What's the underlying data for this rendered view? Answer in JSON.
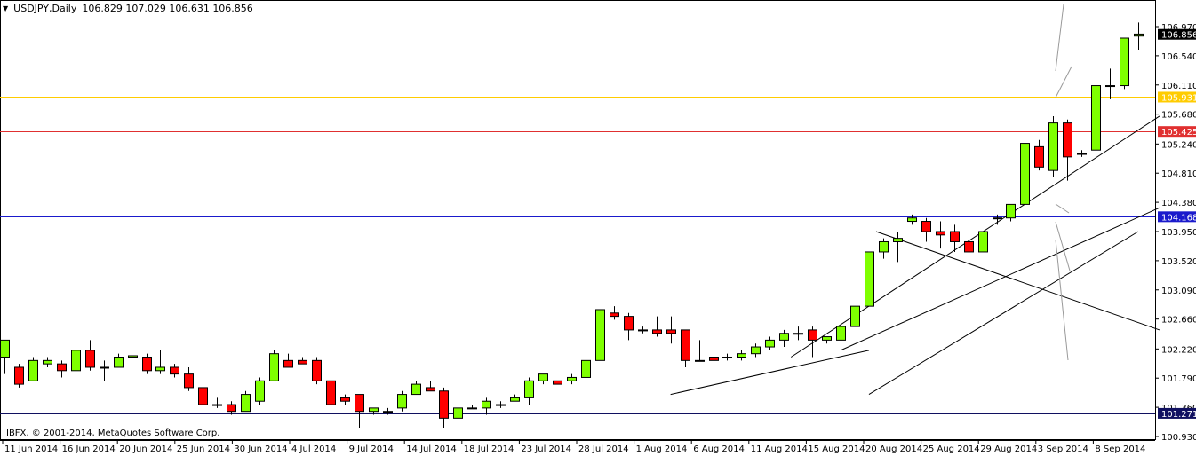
{
  "header": {
    "menu_glyph": "▼",
    "symbol": "USDJPY,Daily",
    "ohlc": "106.829 107.029 106.631 106.856"
  },
  "copyright": "IBFX, © 2001-2014, MetaQuotes Software Corp.",
  "colors": {
    "bull": "#7fff00",
    "bear": "#ff0000",
    "hline_yellow": "#ffcc00",
    "hline_red": "#e03030",
    "hline_blue": "#1a1acc",
    "hline_navy": "#101060"
  },
  "chart_data": {
    "type": "candlestick",
    "symbol": "USDJPY",
    "timeframe": "Daily",
    "ylim": [
      100.93,
      107.2
    ],
    "y_ticks": [
      "106.970",
      "106.540",
      "106.110",
      "105.680",
      "105.240",
      "104.810",
      "104.380",
      "103.950",
      "103.520",
      "103.090",
      "102.660",
      "102.220",
      "101.790",
      "101.360",
      "100.930"
    ],
    "x_ticks": [
      "11 Jun 2014",
      "16 Jun 2014",
      "20 Jun 2014",
      "25 Jun 2014",
      "30 Jun 2014",
      "4 Jul 2014",
      "9 Jul 2014",
      "14 Jul 2014",
      "18 Jul 2014",
      "23 Jul 2014",
      "28 Jul 2014",
      "1 Aug 2014",
      "6 Aug 2014",
      "11 Aug 2014",
      "15 Aug 2014",
      "20 Aug 2014",
      "25 Aug 2014",
      "29 Aug 2014",
      "3 Sep 2014",
      "8 Sep 2014"
    ],
    "price_levels": [
      {
        "label": "106.856",
        "value": 106.856,
        "color": "#000000",
        "line": false
      },
      {
        "label": "105.931",
        "value": 105.931,
        "color": "#ffcc00",
        "line": true
      },
      {
        "label": "105.425",
        "value": 105.425,
        "color": "#e03030",
        "line": true
      },
      {
        "label": "104.168",
        "value": 104.168,
        "color": "#1a1acc",
        "line": true
      },
      {
        "label": "101.271",
        "value": 101.271,
        "color": "#101060",
        "line": true
      }
    ],
    "candles": [
      {
        "o": 102.1,
        "h": 102.35,
        "l": 101.85,
        "c": 102.35
      },
      {
        "o": 101.95,
        "h": 102.0,
        "l": 101.65,
        "c": 101.7
      },
      {
        "o": 101.75,
        "h": 102.1,
        "l": 101.75,
        "c": 102.05
      },
      {
        "o": 102.0,
        "h": 102.1,
        "l": 101.95,
        "c": 102.05
      },
      {
        "o": 102.0,
        "h": 102.05,
        "l": 101.8,
        "c": 101.9
      },
      {
        "o": 101.9,
        "h": 102.25,
        "l": 101.85,
        "c": 102.2
      },
      {
        "o": 102.2,
        "h": 102.35,
        "l": 101.9,
        "c": 101.95
      },
      {
        "o": 101.95,
        "h": 102.05,
        "l": 101.75,
        "c": 101.95
      },
      {
        "o": 101.95,
        "h": 102.15,
        "l": 101.95,
        "c": 102.1
      },
      {
        "o": 102.1,
        "h": 102.12,
        "l": 102.08,
        "c": 102.12
      },
      {
        "o": 102.1,
        "h": 102.15,
        "l": 101.85,
        "c": 101.9
      },
      {
        "o": 101.9,
        "h": 102.2,
        "l": 101.85,
        "c": 101.95
      },
      {
        "o": 101.95,
        "h": 102.0,
        "l": 101.8,
        "c": 101.85
      },
      {
        "o": 101.85,
        "h": 101.95,
        "l": 101.6,
        "c": 101.65
      },
      {
        "o": 101.65,
        "h": 101.7,
        "l": 101.35,
        "c": 101.4
      },
      {
        "o": 101.4,
        "h": 101.5,
        "l": 101.35,
        "c": 101.4
      },
      {
        "o": 101.4,
        "h": 101.45,
        "l": 101.25,
        "c": 101.3
      },
      {
        "o": 101.3,
        "h": 101.6,
        "l": 101.3,
        "c": 101.55
      },
      {
        "o": 101.45,
        "h": 101.8,
        "l": 101.4,
        "c": 101.75
      },
      {
        "o": 101.75,
        "h": 102.2,
        "l": 101.75,
        "c": 102.15
      },
      {
        "o": 102.05,
        "h": 102.15,
        "l": 101.95,
        "c": 101.95
      },
      {
        "o": 102.05,
        "h": 102.1,
        "l": 102.0,
        "c": 102.0
      },
      {
        "o": 102.05,
        "h": 102.1,
        "l": 101.7,
        "c": 101.75
      },
      {
        "o": 101.75,
        "h": 101.8,
        "l": 101.35,
        "c": 101.4
      },
      {
        "o": 101.5,
        "h": 101.55,
        "l": 101.4,
        "c": 101.45
      },
      {
        "o": 101.55,
        "h": 101.55,
        "l": 101.05,
        "c": 101.3
      },
      {
        "o": 101.3,
        "h": 101.35,
        "l": 101.25,
        "c": 101.35
      },
      {
        "o": 101.3,
        "h": 101.35,
        "l": 101.25,
        "c": 101.3
      },
      {
        "o": 101.35,
        "h": 101.6,
        "l": 101.3,
        "c": 101.55
      },
      {
        "o": 101.55,
        "h": 101.75,
        "l": 101.55,
        "c": 101.7
      },
      {
        "o": 101.65,
        "h": 101.75,
        "l": 101.6,
        "c": 101.6
      },
      {
        "o": 101.6,
        "h": 101.65,
        "l": 101.05,
        "c": 101.2
      },
      {
        "o": 101.2,
        "h": 101.4,
        "l": 101.1,
        "c": 101.35
      },
      {
        "o": 101.35,
        "h": 101.4,
        "l": 101.35,
        "c": 101.35
      },
      {
        "o": 101.35,
        "h": 101.5,
        "l": 101.25,
        "c": 101.45
      },
      {
        "o": 101.4,
        "h": 101.45,
        "l": 101.35,
        "c": 101.4
      },
      {
        "o": 101.45,
        "h": 101.55,
        "l": 101.45,
        "c": 101.5
      },
      {
        "o": 101.5,
        "h": 101.8,
        "l": 101.4,
        "c": 101.75
      },
      {
        "o": 101.75,
        "h": 101.85,
        "l": 101.7,
        "c": 101.85
      },
      {
        "o": 101.75,
        "h": 101.75,
        "l": 101.7,
        "c": 101.7
      },
      {
        "o": 101.75,
        "h": 101.85,
        "l": 101.7,
        "c": 101.8
      },
      {
        "o": 101.8,
        "h": 102.05,
        "l": 101.8,
        "c": 102.05
      },
      {
        "o": 102.05,
        "h": 102.8,
        "l": 102.05,
        "c": 102.8
      },
      {
        "o": 102.75,
        "h": 102.85,
        "l": 102.65,
        "c": 102.7
      },
      {
        "o": 102.7,
        "h": 102.75,
        "l": 102.35,
        "c": 102.5
      },
      {
        "o": 102.5,
        "h": 102.55,
        "l": 102.45,
        "c": 102.5
      },
      {
        "o": 102.5,
        "h": 102.7,
        "l": 102.4,
        "c": 102.45
      },
      {
        "o": 102.5,
        "h": 102.7,
        "l": 102.3,
        "c": 102.45
      },
      {
        "o": 102.5,
        "h": 102.5,
        "l": 101.95,
        "c": 102.05
      },
      {
        "o": 102.05,
        "h": 102.35,
        "l": 102.05,
        "c": 102.05
      },
      {
        "o": 102.1,
        "h": 102.1,
        "l": 102.05,
        "c": 102.05
      },
      {
        "o": 102.1,
        "h": 102.15,
        "l": 102.05,
        "c": 102.1
      },
      {
        "o": 102.1,
        "h": 102.2,
        "l": 102.05,
        "c": 102.15
      },
      {
        "o": 102.15,
        "h": 102.3,
        "l": 102.1,
        "c": 102.25
      },
      {
        "o": 102.25,
        "h": 102.4,
        "l": 102.2,
        "c": 102.35
      },
      {
        "o": 102.35,
        "h": 102.5,
        "l": 102.25,
        "c": 102.45
      },
      {
        "o": 102.45,
        "h": 102.55,
        "l": 102.35,
        "c": 102.45
      },
      {
        "o": 102.5,
        "h": 102.55,
        "l": 102.1,
        "c": 102.35
      },
      {
        "o": 102.35,
        "h": 102.4,
        "l": 102.3,
        "c": 102.4
      },
      {
        "o": 102.35,
        "h": 102.6,
        "l": 102.25,
        "c": 102.55
      },
      {
        "o": 102.55,
        "h": 102.85,
        "l": 102.55,
        "c": 102.85
      },
      {
        "o": 102.85,
        "h": 103.65,
        "l": 102.85,
        "c": 103.65
      },
      {
        "o": 103.65,
        "h": 103.85,
        "l": 103.55,
        "c": 103.8
      },
      {
        "o": 103.8,
        "h": 103.95,
        "l": 103.5,
        "c": 103.85
      },
      {
        "o": 104.1,
        "h": 104.2,
        "l": 104.05,
        "c": 104.15
      },
      {
        "o": 104.1,
        "h": 104.15,
        "l": 103.8,
        "c": 103.95
      },
      {
        "o": 103.95,
        "h": 104.1,
        "l": 103.7,
        "c": 103.9
      },
      {
        "o": 103.95,
        "h": 104.05,
        "l": 103.65,
        "c": 103.8
      },
      {
        "o": 103.8,
        "h": 103.85,
        "l": 103.6,
        "c": 103.65
      },
      {
        "o": 103.65,
        "h": 103.95,
        "l": 103.65,
        "c": 103.95
      },
      {
        "o": 104.15,
        "h": 104.2,
        "l": 104.05,
        "c": 104.15
      },
      {
        "o": 104.15,
        "h": 104.35,
        "l": 104.1,
        "c": 104.35
      },
      {
        "o": 104.35,
        "h": 105.25,
        "l": 104.35,
        "c": 105.25
      },
      {
        "o": 105.2,
        "h": 105.3,
        "l": 104.85,
        "c": 104.9
      },
      {
        "o": 104.85,
        "h": 105.65,
        "l": 104.75,
        "c": 105.55
      },
      {
        "o": 105.55,
        "h": 105.6,
        "l": 104.7,
        "c": 105.05
      },
      {
        "o": 105.1,
        "h": 105.15,
        "l": 105.05,
        "c": 105.1
      },
      {
        "o": 105.15,
        "h": 106.1,
        "l": 104.95,
        "c": 106.1
      },
      {
        "o": 106.1,
        "h": 106.35,
        "l": 105.9,
        "c": 106.1
      },
      {
        "o": 106.1,
        "h": 106.8,
        "l": 106.05,
        "c": 106.8
      },
      {
        "o": 106.83,
        "h": 107.03,
        "l": 106.63,
        "c": 106.86
      }
    ],
    "trendlines": [
      {
        "from": [
          61.0,
          101.55
        ],
        "to": [
          80.0,
          103.95
        ],
        "color": "#000000"
      },
      {
        "from": [
          47.0,
          101.55
        ],
        "to": [
          61.0,
          102.2
        ],
        "color": "#000000"
      },
      {
        "from": [
          59.0,
          102.2
        ],
        "to": [
          81.5,
          104.3
        ],
        "color": "#000000"
      },
      {
        "from": [
          61.5,
          103.95
        ],
        "to": [
          81.5,
          102.5
        ],
        "color": "#000000"
      },
      {
        "from": [
          55.5,
          102.1
        ],
        "to": [
          81.5,
          105.65
        ],
        "color": "#000000"
      }
    ]
  }
}
